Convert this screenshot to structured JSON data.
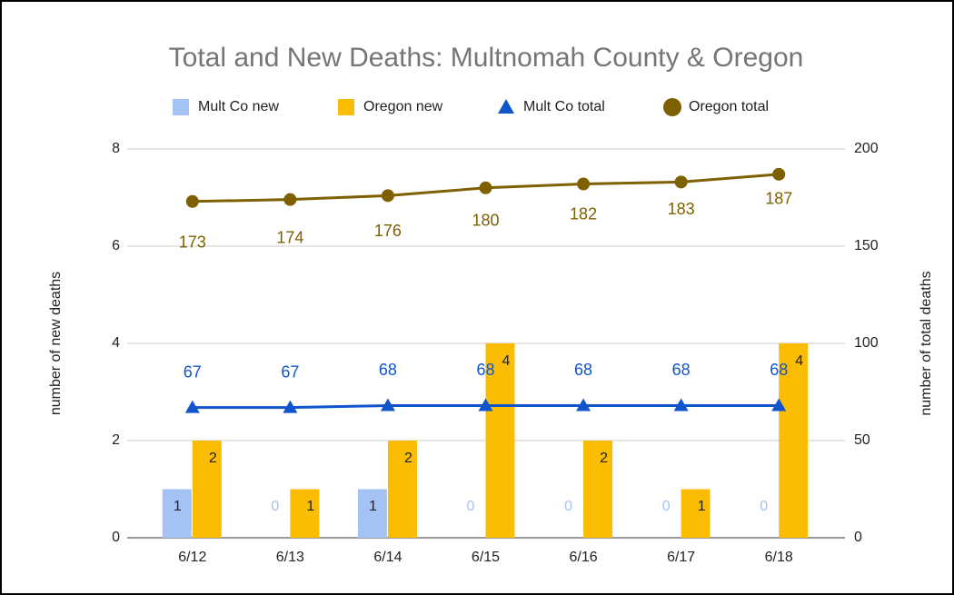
{
  "chart_data": {
    "type": "combo",
    "title": "Total and New Deaths: Multnomah County & Oregon",
    "categories": [
      "6/12",
      "6/13",
      "6/14",
      "6/15",
      "6/16",
      "6/17",
      "6/18"
    ],
    "ylabel": "number of new deaths",
    "y2label": "number of total deaths",
    "ylim": [
      0,
      8
    ],
    "yticks": [
      0,
      2,
      4,
      6,
      8
    ],
    "y2lim": [
      0,
      200
    ],
    "y2ticks": [
      0,
      50,
      100,
      150,
      200
    ],
    "grid": true,
    "legend": "top",
    "series": [
      {
        "name": "Mult Co new",
        "type": "bar",
        "color": "#a4c2f4",
        "values": [
          1,
          0,
          1,
          0,
          0,
          0,
          0
        ]
      },
      {
        "name": "Oregon new",
        "type": "bar",
        "color": "#fbbc04",
        "values": [
          2,
          1,
          2,
          4,
          2,
          1,
          4
        ]
      },
      {
        "name": "Mult Co total",
        "type": "line",
        "marker": "triangle",
        "axis": "y2",
        "color": "#1155cc",
        "values": [
          67,
          67,
          68,
          68,
          68,
          68,
          68
        ]
      },
      {
        "name": "Oregon total",
        "type": "line",
        "marker": "circle",
        "axis": "y2",
        "color": "#7f6000",
        "values": [
          173,
          174,
          176,
          180,
          182,
          183,
          187
        ]
      }
    ]
  }
}
